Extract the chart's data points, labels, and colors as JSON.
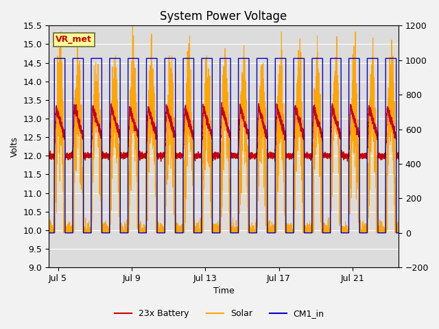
{
  "title": "System Power Voltage",
  "xlabel": "Time",
  "ylabel_left": "Volts",
  "ylim_left": [
    9.0,
    15.5
  ],
  "ylim_right": [
    -200,
    1200
  ],
  "yticks_left": [
    9.0,
    9.5,
    10.0,
    10.5,
    11.0,
    11.5,
    12.0,
    12.5,
    13.0,
    13.5,
    14.0,
    14.5,
    15.0,
    15.5
  ],
  "yticks_right": [
    -200,
    0,
    200,
    400,
    600,
    800,
    1000,
    1200
  ],
  "xtick_labels": [
    "Jul 5",
    "Jul 9",
    "Jul 13",
    "Jul 17",
    "Jul 21"
  ],
  "xtick_positions": [
    4,
    8,
    12,
    16,
    20
  ],
  "xlim": [
    3.5,
    22.5
  ],
  "bg_color": "#dcdcdc",
  "grid_color": "#ffffff",
  "legend_items": [
    {
      "label": "23x Battery",
      "color": "#cc0000",
      "lw": 1.5
    },
    {
      "label": "Solar",
      "color": "#ffa500",
      "lw": 1.5
    },
    {
      "label": "CM1_in",
      "color": "#0000cc",
      "lw": 1.5
    }
  ],
  "annotation_text": "VR_met",
  "annotation_fc": "#ffff99",
  "annotation_ec": "#666633",
  "annotation_tc": "#cc0000",
  "title_fontsize": 12,
  "tick_fontsize": 9,
  "label_fontsize": 9
}
